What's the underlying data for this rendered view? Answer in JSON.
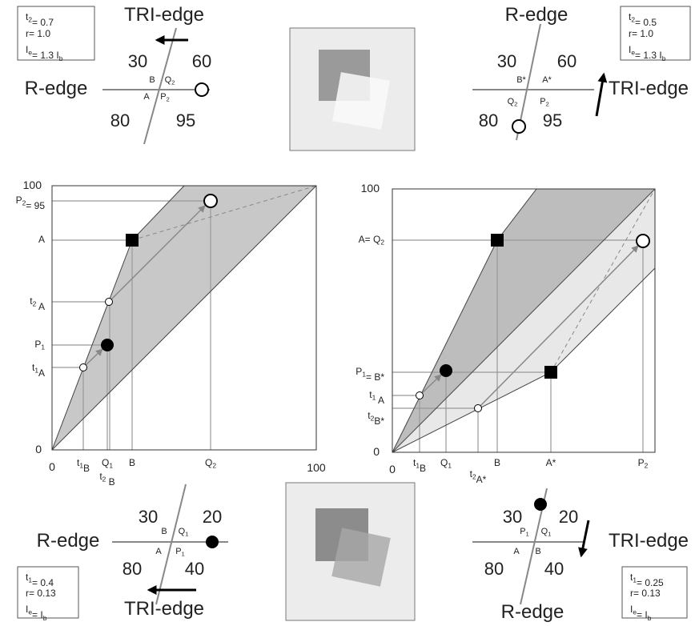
{
  "top_left": {
    "labels": [
      [
        "TRI-edge"
      ],
      [
        "R-edge"
      ],
      [
        "30"
      ],
      [
        "60"
      ],
      [
        "80"
      ],
      [
        "95"
      ],
      [
        "B"
      ],
      [
        "Q",
        {
          "sub": "2"
        }
      ],
      [
        "A"
      ],
      [
        "P",
        {
          "sub": "2"
        }
      ],
      [
        "t",
        {
          "sub": "2"
        },
        "= 0.7"
      ],
      [
        "r= 1.0"
      ],
      [
        "I",
        {
          "sub": "e"
        },
        "= 1.3 I",
        {
          "sub": "b"
        }
      ]
    ]
  },
  "top_right": {
    "labels": [
      [
        "R-edge"
      ],
      [
        "TRI-edge"
      ],
      [
        "30"
      ],
      [
        "60"
      ],
      [
        "80"
      ],
      [
        "95"
      ],
      [
        "B*"
      ],
      [
        "A*"
      ],
      [
        "Q",
        {
          "sub": "2"
        }
      ],
      [
        "P",
        {
          "sub": "2"
        }
      ],
      [
        "t",
        {
          "sub": "2"
        },
        "= 0.5"
      ],
      [
        "r= 1.0"
      ],
      [
        "I",
        {
          "sub": "e"
        },
        "= 1.3 I",
        {
          "sub": "b"
        }
      ]
    ]
  },
  "left_chart": {
    "labels": [
      [
        "100"
      ],
      [
        "P",
        {
          "sub": "2"
        },
        "= 95"
      ],
      [
        "A"
      ],
      [
        "t",
        {
          "sub": "2"
        },
        " A"
      ],
      [
        "P",
        {
          "sub": "1"
        }
      ],
      [
        "t",
        {
          "sub": "1"
        },
        "A"
      ],
      [
        "0"
      ],
      [
        "0"
      ],
      [
        "t",
        {
          "sub": "1"
        },
        "B"
      ],
      [
        "Q",
        {
          "sub": "1"
        }
      ],
      [
        "t",
        {
          "sub": "2"
        },
        " B"
      ],
      [
        "B"
      ],
      [
        "Q",
        {
          "sub": "2"
        }
      ],
      [
        "100"
      ]
    ]
  },
  "right_chart": {
    "labels": [
      [
        "100"
      ],
      [
        "A= Q",
        {
          "sub": "2"
        }
      ],
      [
        "P",
        {
          "sub": "1"
        },
        "= B*"
      ],
      [
        "t",
        {
          "sub": "1"
        },
        " A"
      ],
      [
        "t",
        {
          "sub": "2"
        },
        "B*"
      ],
      [
        "0"
      ],
      [
        "0"
      ],
      [
        "t",
        {
          "sub": "1"
        },
        "B"
      ],
      [
        "Q",
        {
          "sub": "1"
        }
      ],
      [
        "t",
        {
          "sub": "2"
        },
        "A*"
      ],
      [
        "B"
      ],
      [
        "A*"
      ],
      [
        "P",
        {
          "sub": "2"
        }
      ]
    ]
  },
  "bottom_left": {
    "labels": [
      [
        "R-edge"
      ],
      [
        "TRI-edge"
      ],
      [
        "30"
      ],
      [
        "20"
      ],
      [
        "80"
      ],
      [
        "40"
      ],
      [
        "B"
      ],
      [
        "Q",
        {
          "sub": "1"
        }
      ],
      [
        "A"
      ],
      [
        "P",
        {
          "sub": "1"
        }
      ],
      [
        "t",
        {
          "sub": "1"
        },
        "= 0.4"
      ],
      [
        "r= 0.13"
      ],
      [
        "I",
        {
          "sub": "e"
        },
        "= I",
        {
          "sub": "b"
        }
      ]
    ]
  },
  "bottom_right": {
    "labels": [
      [
        "TRI-edge"
      ],
      [
        "R-edge"
      ],
      [
        "30"
      ],
      [
        "20"
      ],
      [
        "80"
      ],
      [
        "40"
      ],
      [
        "P",
        {
          "sub": "1"
        }
      ],
      [
        "Q",
        {
          "sub": "1"
        }
      ],
      [
        "A"
      ],
      [
        "B"
      ],
      [
        "t",
        {
          "sub": "1"
        },
        "= 0.25"
      ],
      [
        "r= 0.13"
      ],
      [
        "I",
        {
          "sub": "e"
        },
        "= I",
        {
          "sub": "b"
        }
      ]
    ]
  }
}
